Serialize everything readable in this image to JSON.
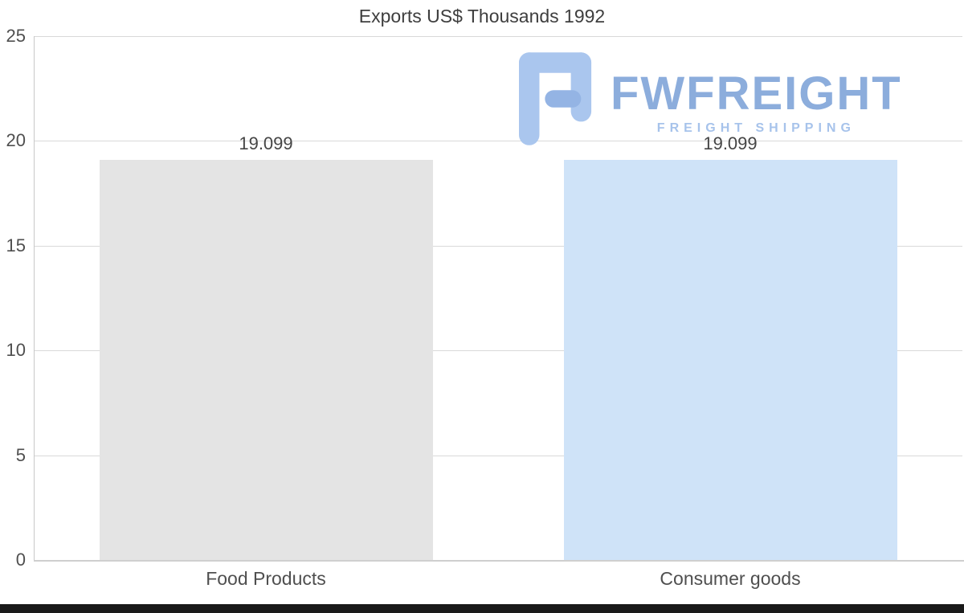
{
  "chart_data": {
    "type": "bar",
    "title": "Exports US$ Thousands 1992",
    "categories": [
      "Food Products",
      "Consumer goods"
    ],
    "values": [
      19.099,
      19.099
    ],
    "value_labels": [
      "19.099",
      "19.099"
    ],
    "bar_colors": [
      "#e4e4e4",
      "#cfe3f8"
    ],
    "xlabel": "",
    "ylabel": "",
    "ylim": [
      0,
      25
    ],
    "yticks": [
      0,
      5,
      10,
      15,
      20,
      25
    ],
    "grid": true,
    "legend": "none"
  },
  "watermark": {
    "brand": "FWFREIGHT",
    "tagline": "FREIGHT SHIPPING",
    "brand_color": "#86a9db",
    "tagline_color": "#a3c0ea",
    "icon_color": "#a6c4ee",
    "icon_accent_color": "#8fb1e3"
  },
  "colors": {
    "background": "#ffffff",
    "grid": "#d9d9d9",
    "axis": "#c8c8c8",
    "text": "#4a4a4a",
    "bottom_bar": "#1a1a1a"
  }
}
